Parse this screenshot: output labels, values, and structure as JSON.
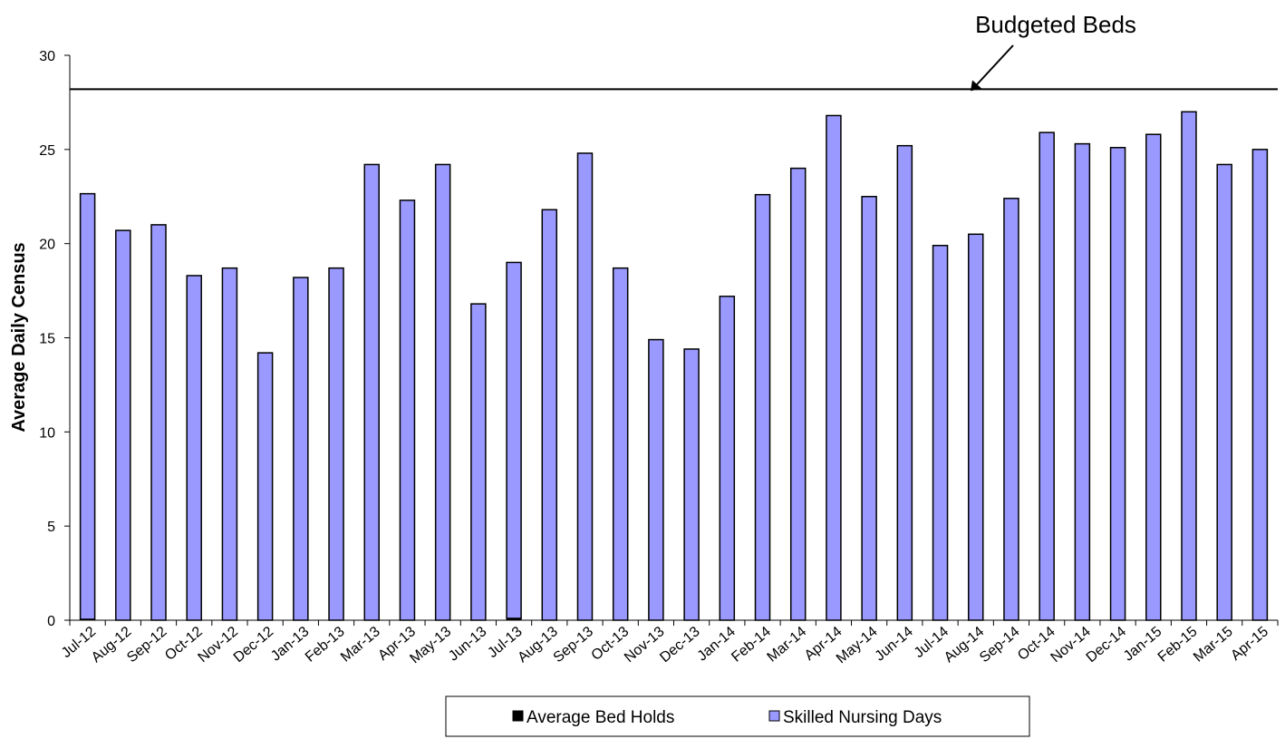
{
  "chart_data": {
    "type": "bar",
    "title": "",
    "xlabel": "",
    "ylabel": "Average Daily Census",
    "ylim": [
      0,
      30
    ],
    "yticks": [
      0,
      5,
      10,
      15,
      20,
      25,
      30
    ],
    "categories": [
      "Jul-12",
      "Aug-12",
      "Sep-12",
      "Oct-12",
      "Nov-12",
      "Dec-12",
      "Jan-13",
      "Feb-13",
      "Mar-13",
      "Apr-13",
      "May-13",
      "Jun-13",
      "Jul-13",
      "Aug-13",
      "Sep-13",
      "Oct-13",
      "Nov-13",
      "Dec-13",
      "Jan-14",
      "Feb-14",
      "Mar-14",
      "Apr-14",
      "May-14",
      "Jun-14",
      "Jul-14",
      "Aug-14",
      "Sep-14",
      "Oct-14",
      "Nov-14",
      "Dec-14",
      "Jan-15",
      "Feb-15",
      "Mar-15",
      "Apr-15"
    ],
    "series": [
      {
        "name": "Average Bed Holds",
        "color": "#000000",
        "values": [
          0.05,
          0,
          0,
          0,
          0,
          0,
          0,
          0,
          0,
          0,
          0,
          0,
          0.1,
          0,
          0,
          0,
          0,
          0,
          0,
          0,
          0,
          0,
          0,
          0,
          0,
          0,
          0,
          0,
          0,
          0,
          0,
          0,
          0,
          0
        ]
      },
      {
        "name": "Skilled Nursing Days",
        "color": "#9999FF",
        "values": [
          22.6,
          20.7,
          21.0,
          18.3,
          18.7,
          14.2,
          18.2,
          18.7,
          24.2,
          22.3,
          24.2,
          16.8,
          18.9,
          21.8,
          24.8,
          18.7,
          14.9,
          14.4,
          17.2,
          22.6,
          24.0,
          26.8,
          22.5,
          25.2,
          19.9,
          20.5,
          22.4,
          25.9,
          25.3,
          25.1,
          25.8,
          27.0,
          24.2,
          25.0
        ]
      }
    ],
    "stacked": true,
    "reference_line": {
      "label": "Budgeted Beds",
      "value": 28.2
    },
    "legend": {
      "position": "bottom",
      "entries": [
        "Average Bed Holds",
        "Skilled Nursing Days"
      ]
    },
    "grid": false
  }
}
